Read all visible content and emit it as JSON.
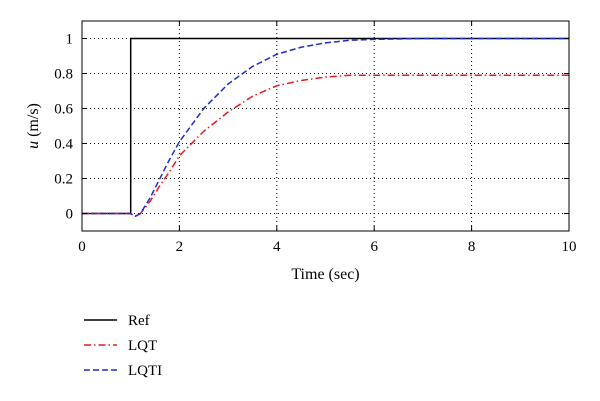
{
  "chart_data": {
    "type": "line",
    "xlabel": "Time (sec)",
    "ylabel_italic": "u",
    "ylabel_rest": " (m/s)",
    "xlim": [
      0,
      10
    ],
    "ylim": [
      -0.1,
      1.1
    ],
    "x_ticks": [
      0,
      2,
      4,
      6,
      8,
      10
    ],
    "x_tick_labels": [
      "0",
      "2",
      "4",
      "6",
      "8",
      "10"
    ],
    "y_ticks": [
      0,
      0.2,
      0.4,
      0.6,
      0.8,
      1
    ],
    "y_tick_labels": [
      "0",
      "0.2",
      "0.4",
      "0.6",
      "0.8",
      "1"
    ],
    "grid": "dotted",
    "legend_position": "bottom-left, below axes",
    "series": [
      {
        "name": "Ref",
        "color": "#000000",
        "dash": "solid",
        "points": [
          [
            0,
            0
          ],
          [
            1.0,
            0
          ],
          [
            1.0,
            1.0
          ],
          [
            10,
            1.0
          ]
        ]
      },
      {
        "name": "LQT",
        "color": "#e8191f",
        "dash": "dashdot",
        "points": [
          [
            0,
            0
          ],
          [
            1.0,
            0
          ],
          [
            1.05,
            -0.01
          ],
          [
            1.1,
            -0.015
          ],
          [
            1.2,
            0.0
          ],
          [
            1.4,
            0.07
          ],
          [
            1.6,
            0.16
          ],
          [
            1.8,
            0.24
          ],
          [
            2.0,
            0.33
          ],
          [
            2.5,
            0.47
          ],
          [
            3.0,
            0.58
          ],
          [
            3.5,
            0.67
          ],
          [
            4.0,
            0.73
          ],
          [
            4.5,
            0.76
          ],
          [
            5.0,
            0.78
          ],
          [
            5.5,
            0.79
          ],
          [
            6.0,
            0.79
          ],
          [
            7.0,
            0.79
          ],
          [
            8.0,
            0.79
          ],
          [
            9.0,
            0.79
          ],
          [
            10.0,
            0.79
          ]
        ]
      },
      {
        "name": "LQTI",
        "color": "#1a2fc9",
        "dash": "dashed",
        "points": [
          [
            0,
            0
          ],
          [
            1.0,
            0
          ],
          [
            1.05,
            -0.01
          ],
          [
            1.1,
            -0.015
          ],
          [
            1.2,
            0.0
          ],
          [
            1.4,
            0.09
          ],
          [
            1.6,
            0.2
          ],
          [
            1.8,
            0.31
          ],
          [
            2.0,
            0.41
          ],
          [
            2.5,
            0.6
          ],
          [
            3.0,
            0.74
          ],
          [
            3.5,
            0.84
          ],
          [
            4.0,
            0.91
          ],
          [
            4.5,
            0.95
          ],
          [
            5.0,
            0.975
          ],
          [
            5.5,
            0.99
          ],
          [
            6.0,
            0.995
          ],
          [
            7.0,
            1.0
          ],
          [
            8.0,
            1.0
          ],
          [
            9.0,
            1.0
          ],
          [
            10.0,
            1.0
          ]
        ]
      }
    ]
  }
}
